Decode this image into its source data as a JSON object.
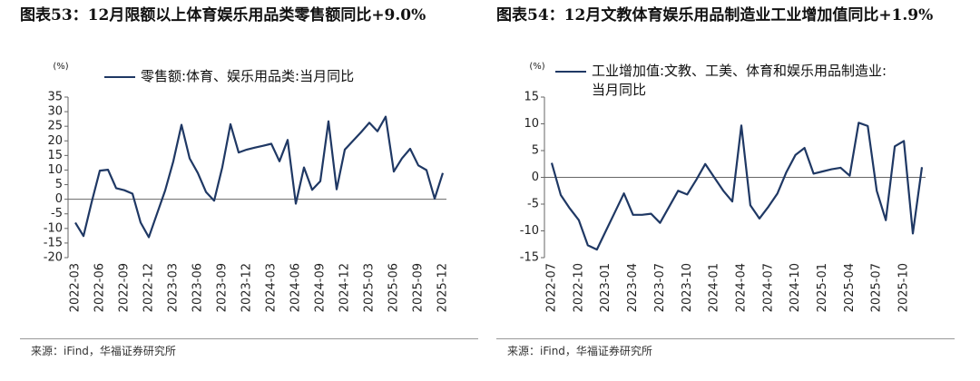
{
  "chart_data": [
    {
      "type": "line",
      "title": "图表53：12月限额以上体育娱乐用品类零售额同比+9.0%",
      "y_label": "(%)",
      "source": "来源：iFind，华福证券研究所",
      "categories": [
        "2022-03",
        null,
        null,
        "2022-06",
        null,
        null,
        "2022-09",
        null,
        null,
        "2022-12",
        null,
        null,
        "2023-03",
        null,
        null,
        "2023-06",
        null,
        null,
        "2023-09",
        null,
        null,
        "2023-12",
        null,
        null,
        "2024-03",
        null,
        null,
        "2024-06",
        null,
        null,
        "2024-09",
        null,
        null,
        "2024-12",
        null,
        null,
        "2025-03",
        null,
        null,
        "2025-06",
        null,
        null,
        "2025-09",
        null,
        null,
        "2025-12"
      ],
      "series": [
        {
          "name": "零售额:体育、娱乐用品类:当月同比",
          "color": "#1f3864",
          "values": [
            -8,
            -12.6,
            -1,
            9.8,
            10.1,
            3.8,
            3.1,
            1.9,
            -8,
            -13,
            -5,
            3,
            13,
            25.5,
            14,
            9,
            2.5,
            -0.5,
            11,
            25.7,
            16,
            17,
            17.7,
            18.3,
            19,
            13,
            20.3,
            -1.5,
            10.9,
            3.2,
            6.2,
            26.7,
            3.4,
            17,
            20,
            23,
            26.2,
            23.3,
            28.3,
            9.5,
            14,
            17.3,
            11.6,
            10,
            0.2,
            9
          ]
        }
      ],
      "ylim": [
        -20,
        35
      ],
      "yticks": [
        -20,
        -15,
        -10,
        -5,
        0,
        5,
        10,
        15,
        20,
        25,
        30,
        35
      ]
    },
    {
      "type": "line",
      "title": "图表54：12月文教体育娱乐用品制造业工业增加值同比+1.9%",
      "y_label": "(%)",
      "source": "来源：iFind，华福证券研究所",
      "categories": [
        "2022-07",
        null,
        null,
        "2022-10",
        null,
        null,
        "2023-01",
        null,
        null,
        "2023-04",
        null,
        null,
        "2023-07",
        null,
        null,
        "2023-10",
        null,
        null,
        "2024-01",
        null,
        null,
        "2024-04",
        null,
        null,
        "2024-07",
        null,
        null,
        "2024-10",
        null,
        null,
        "2025-01",
        null,
        null,
        "2025-04",
        null,
        null,
        "2025-07",
        null,
        null,
        "2025-10",
        null,
        null
      ],
      "series": [
        {
          "name": "工业增加值:文教、工美、体育和娱乐用品制造业:当月同比",
          "color": "#1f3864",
          "values": [
            2.7,
            -3.3,
            -5.8,
            -8,
            -12.7,
            -13.5,
            -10,
            -6.5,
            -3,
            -7,
            -7,
            -6.8,
            -8.5,
            -5.5,
            -2.5,
            -3.2,
            -0.5,
            2.5,
            0,
            -2.5,
            -4.5,
            9.7,
            -5.2,
            -7.7,
            -5.5,
            -3,
            1,
            4.2,
            5.5,
            0.7,
            1.1,
            1.5,
            1.8,
            0.3,
            10.2,
            9.6,
            -2.5,
            -8,
            5.8,
            6.8,
            -10.5,
            1.9
          ]
        }
      ],
      "ylim": [
        -15,
        15
      ],
      "yticks": [
        -15,
        -10,
        -5,
        0,
        5,
        10,
        15
      ]
    }
  ]
}
